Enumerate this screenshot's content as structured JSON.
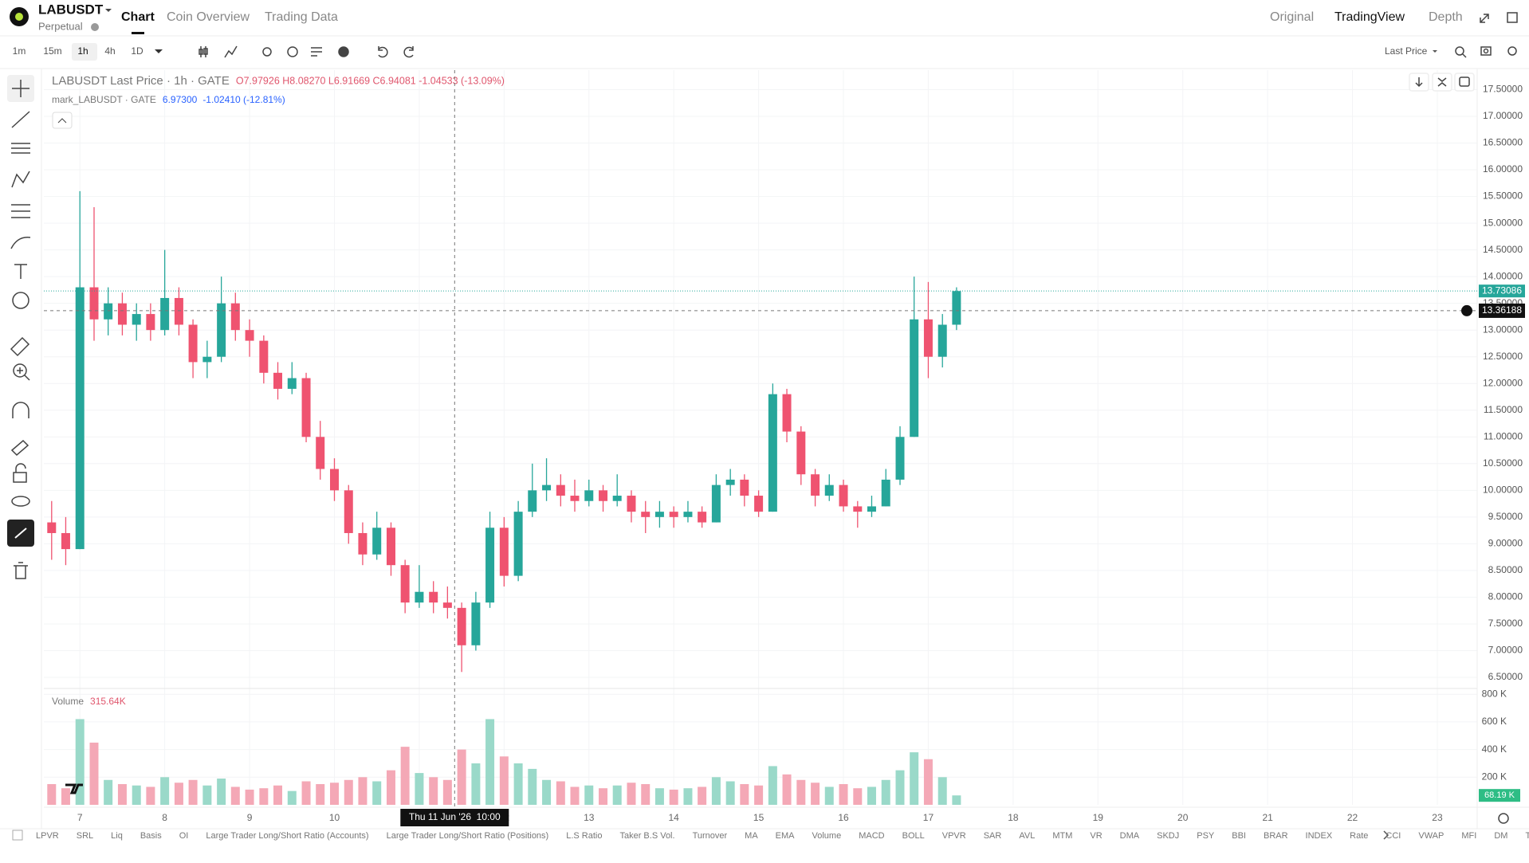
{
  "header": {
    "symbol": "LABUSDT",
    "subtitle": "Perpetual",
    "tabs": [
      "Chart",
      "Coin Overview",
      "Trading Data"
    ],
    "views": [
      "Original",
      "TradingView",
      "Depth"
    ]
  },
  "toolbar": {
    "intervals": [
      "1m",
      "15m",
      "1h",
      "4h",
      "1D"
    ],
    "price_source": "Last Price"
  },
  "legend": {
    "title": "LABUSDT Last Price · 1h · GATE",
    "ohlc": "O7.97926 H8.08270 L6.91669 C6.94081 -1.04533 (-13.09%)",
    "mark_title": "mark_LABUSDT · GATE",
    "mark_value": "6.97300",
    "mark_change": "-1.02410 (-12.81%)",
    "volume_title": "Volume",
    "volume_value": "315.64K"
  },
  "indicators": [
    "LPVR",
    "SRL",
    "Liq",
    "Basis",
    "OI",
    "Large Trader Long/Short Ratio (Accounts)",
    "Large Trader Long/Short Ratio (Positions)",
    "L.S Ratio",
    "Taker B.S Vol.",
    "Turnover",
    "MA",
    "EMA",
    "Volume",
    "MACD",
    "BOLL",
    "VPVR",
    "SAR",
    "AVL",
    "MTM",
    "VR",
    "DMA",
    "SKDJ",
    "PSY",
    "BBI",
    "BRAR",
    "INDEX",
    "Rate",
    "CCI",
    "VWAP",
    "MFI",
    "DM",
    "TRIX"
  ],
  "chart_data": {
    "type": "candlestick",
    "x": [
      6.667,
      6.833,
      7.0,
      7.167,
      7.333,
      7.5,
      7.667,
      7.833,
      8.0,
      8.167,
      8.333,
      8.5,
      8.667,
      8.833,
      9.0,
      9.167,
      9.333,
      9.5,
      9.667,
      9.833,
      10.0,
      10.167,
      10.333,
      10.5,
      10.667,
      10.833,
      11.0,
      11.167,
      11.333,
      11.5,
      11.667,
      11.833,
      12.0,
      12.167,
      12.333,
      12.5,
      12.667,
      12.833,
      13.0,
      13.167,
      13.333,
      13.5,
      13.667,
      13.833,
      14.0,
      14.167,
      14.333,
      14.5,
      14.667,
      14.833,
      15.0,
      15.167,
      15.333,
      15.5,
      15.667,
      15.833,
      16.0,
      16.167,
      16.333,
      16.5,
      16.667,
      16.833,
      17.0,
      17.167,
      17.333
    ],
    "open": [
      9.4,
      9.2,
      8.9,
      13.8,
      13.2,
      13.5,
      13.1,
      13.3,
      13.0,
      13.6,
      13.1,
      12.4,
      12.5,
      13.5,
      13.0,
      12.8,
      12.2,
      11.9,
      12.1,
      11.0,
      10.4,
      10.0,
      9.2,
      8.8,
      9.3,
      8.6,
      7.9,
      8.1,
      7.9,
      7.8,
      7.1,
      7.9,
      9.3,
      8.4,
      9.6,
      10.0,
      10.1,
      9.9,
      9.8,
      10.0,
      9.8,
      9.9,
      9.6,
      9.5,
      9.6,
      9.5,
      9.6,
      9.4,
      10.1,
      10.2,
      9.9,
      9.6,
      11.8,
      11.1,
      10.3,
      9.9,
      10.1,
      9.7,
      9.6,
      9.7,
      10.2,
      11.0,
      13.2,
      12.5,
      13.1
    ],
    "high": [
      9.8,
      9.5,
      15.6,
      15.3,
      13.8,
      13.7,
      13.5,
      13.5,
      14.5,
      13.8,
      13.2,
      12.8,
      14.0,
      13.7,
      13.2,
      12.9,
      12.4,
      12.4,
      12.2,
      11.3,
      10.6,
      10.1,
      9.4,
      9.6,
      9.4,
      8.7,
      8.6,
      8.3,
      8.2,
      7.9,
      8.1,
      9.6,
      9.5,
      9.8,
      10.5,
      10.6,
      10.3,
      10.2,
      10.2,
      10.1,
      10.3,
      10.0,
      9.8,
      9.8,
      9.7,
      9.8,
      9.7,
      10.3,
      10.4,
      10.3,
      10.0,
      12.0,
      11.9,
      11.2,
      10.4,
      10.3,
      10.2,
      9.8,
      9.9,
      10.4,
      11.2,
      14.0,
      13.9,
      13.3,
      13.8
    ],
    "low": [
      8.7,
      8.6,
      8.9,
      12.8,
      12.9,
      12.9,
      12.8,
      12.8,
      12.9,
      12.9,
      12.1,
      12.1,
      12.4,
      12.8,
      12.5,
      12.0,
      11.7,
      11.8,
      10.9,
      10.2,
      9.8,
      9.0,
      8.6,
      8.7,
      8.4,
      7.7,
      7.8,
      7.7,
      7.6,
      6.6,
      7.0,
      7.8,
      8.2,
      8.3,
      9.5,
      9.8,
      9.7,
      9.6,
      9.7,
      9.6,
      9.7,
      9.4,
      9.2,
      9.3,
      9.3,
      9.4,
      9.3,
      9.4,
      9.9,
      9.7,
      9.5,
      9.6,
      10.9,
      10.1,
      9.7,
      9.8,
      9.6,
      9.3,
      9.5,
      9.7,
      10.1,
      11.0,
      12.1,
      12.3,
      13.0
    ],
    "close": [
      9.2,
      8.9,
      13.8,
      13.2,
      13.5,
      13.1,
      13.3,
      13.0,
      13.6,
      13.1,
      12.4,
      12.5,
      13.5,
      13.0,
      12.8,
      12.2,
      11.9,
      12.1,
      11.0,
      10.4,
      10.0,
      9.2,
      8.8,
      9.3,
      8.6,
      7.9,
      8.1,
      7.9,
      7.8,
      7.1,
      7.9,
      9.3,
      8.4,
      9.6,
      10.0,
      10.1,
      9.9,
      9.8,
      10.0,
      9.8,
      9.9,
      9.6,
      9.5,
      9.6,
      9.5,
      9.6,
      9.4,
      10.1,
      10.2,
      9.9,
      9.6,
      11.8,
      11.1,
      10.3,
      9.9,
      10.1,
      9.7,
      9.6,
      9.7,
      10.2,
      11.0,
      13.2,
      12.5,
      13.1,
      13.73
    ],
    "volume": [
      150000,
      120000,
      620000,
      450000,
      180000,
      150000,
      140000,
      130000,
      200000,
      160000,
      180000,
      140000,
      190000,
      130000,
      110000,
      120000,
      140000,
      100000,
      170000,
      150000,
      160000,
      180000,
      200000,
      170000,
      250000,
      420000,
      230000,
      200000,
      180000,
      400000,
      300000,
      620000,
      350000,
      300000,
      260000,
      180000,
      170000,
      130000,
      140000,
      120000,
      140000,
      160000,
      150000,
      120000,
      110000,
      120000,
      130000,
      200000,
      170000,
      150000,
      140000,
      280000,
      220000,
      180000,
      160000,
      130000,
      150000,
      120000,
      130000,
      180000,
      250000,
      380000,
      330000,
      200000,
      68190
    ],
    "up_color": "#26a69a",
    "down_color": "#ef5370",
    "volume_up_color": "#9ad9c9",
    "volume_down_color": "#f4a8b6",
    "xlim": [
      6.575,
      23.47
    ],
    "xticks": [
      7,
      8,
      9,
      10,
      11,
      12,
      13,
      14,
      15,
      16,
      17,
      18,
      19,
      20,
      21,
      22,
      23
    ],
    "ylim": [
      6.321,
      17.865
    ],
    "yticks": [
      {
        "value": 6.5,
        "label": "6.50000"
      },
      {
        "value": 7,
        "label": "7.00000"
      },
      {
        "value": 7.5,
        "label": "7.50000"
      },
      {
        "value": 8,
        "label": "8.00000"
      },
      {
        "value": 8.5,
        "label": "8.50000"
      },
      {
        "value": 9,
        "label": "9.00000"
      },
      {
        "value": 9.5,
        "label": "9.50000"
      },
      {
        "value": 10,
        "label": "10.00000"
      },
      {
        "value": 10.5,
        "label": "10.50000"
      },
      {
        "value": 11,
        "label": "11.00000"
      },
      {
        "value": 11.5,
        "label": "11.50000"
      },
      {
        "value": 12,
        "label": "12.00000"
      },
      {
        "value": 12.5,
        "label": "12.50000"
      },
      {
        "value": 13,
        "label": "13.00000"
      },
      {
        "value": 13.5,
        "label": "13.50000"
      },
      {
        "value": 14,
        "label": "14.00000"
      },
      {
        "value": 14.5,
        "label": "14.50000"
      },
      {
        "value": 15,
        "label": "15.00000"
      },
      {
        "value": 15.5,
        "label": "15.50000"
      },
      {
        "value": 16,
        "label": "16.00000"
      },
      {
        "value": 16.5,
        "label": "16.50000"
      },
      {
        "value": 17,
        "label": "17.00000"
      },
      {
        "value": 17.5,
        "label": "17.50000"
      }
    ],
    "volume_ylim": [
      0,
      830000
    ],
    "volume_ticks": [
      {
        "value": 200000,
        "label": "200 K"
      },
      {
        "value": 400000,
        "label": "400 K"
      },
      {
        "value": 600000,
        "label": "600 K"
      },
      {
        "value": 800000,
        "label": "800 K"
      }
    ],
    "grid": true,
    "last_price": {
      "value": 13.73086,
      "label": "13.73086"
    },
    "current_volume": {
      "value": 68190,
      "label": "68.19 K"
    },
    "crosshair": {
      "x": 11.417,
      "x_label": "Thu 11 Jun '26  10:00",
      "price": 13.36188,
      "price_label": "13.36188"
    }
  }
}
